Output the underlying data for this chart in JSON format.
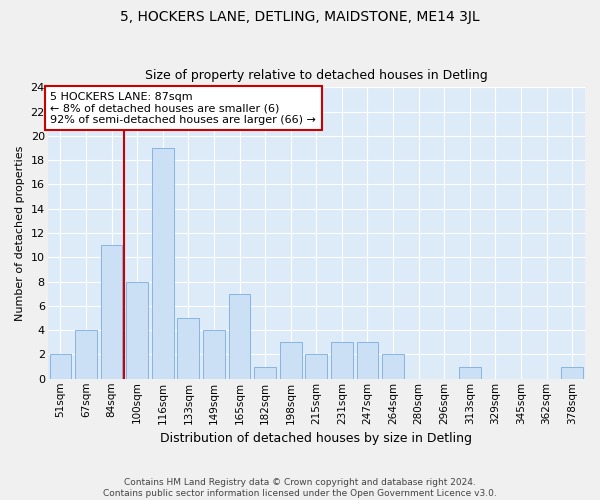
{
  "title": "5, HOCKERS LANE, DETLING, MAIDSTONE, ME14 3JL",
  "subtitle": "Size of property relative to detached houses in Detling",
  "xlabel": "Distribution of detached houses by size in Detling",
  "ylabel": "Number of detached properties",
  "categories": [
    "51sqm",
    "67sqm",
    "84sqm",
    "100sqm",
    "116sqm",
    "133sqm",
    "149sqm",
    "165sqm",
    "182sqm",
    "198sqm",
    "215sqm",
    "231sqm",
    "247sqm",
    "264sqm",
    "280sqm",
    "296sqm",
    "313sqm",
    "329sqm",
    "345sqm",
    "362sqm",
    "378sqm"
  ],
  "values": [
    2,
    4,
    11,
    8,
    19,
    5,
    4,
    7,
    1,
    3,
    2,
    3,
    3,
    2,
    0,
    0,
    1,
    0,
    0,
    0,
    1
  ],
  "bar_color": "#cce0f5",
  "bar_edge_color": "#7aade0",
  "vline_color": "#cc0000",
  "vline_x_index": 2.5,
  "ylim": [
    0,
    24
  ],
  "yticks": [
    0,
    2,
    4,
    6,
    8,
    10,
    12,
    14,
    16,
    18,
    20,
    22,
    24
  ],
  "annotation_line1": "5 HOCKERS LANE: 87sqm",
  "annotation_line2": "← 8% of detached houses are smaller (6)",
  "annotation_line3": "92% of semi-detached houses are larger (66) →",
  "annotation_box_color": "#ffffff",
  "annotation_box_edge": "#cc0000",
  "bg_color": "#ddeaf8",
  "fig_bg_color": "#f0f0f0",
  "footer_line1": "Contains HM Land Registry data © Crown copyright and database right 2024.",
  "footer_line2": "Contains public sector information licensed under the Open Government Licence v3.0.",
  "title_fontsize": 10,
  "subtitle_fontsize": 9,
  "xlabel_fontsize": 9,
  "ylabel_fontsize": 8
}
